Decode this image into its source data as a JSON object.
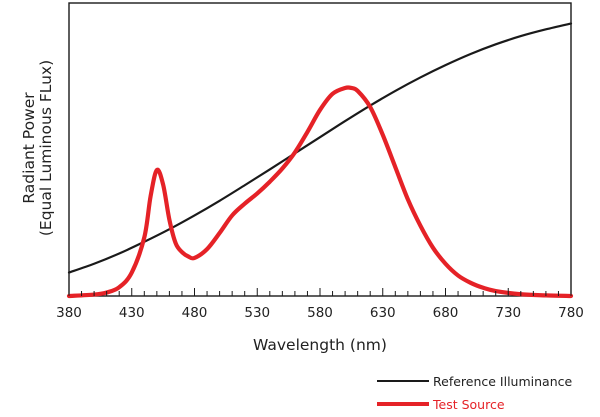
{
  "chart_data": {
    "type": "line",
    "xlabel": "Wavelength (nm)",
    "ylabel_lines": [
      "Radiant Power",
      "(Equal Luminous FLux)"
    ],
    "xlim": [
      380,
      780
    ],
    "ylim": [
      0,
      1
    ],
    "x_ticks": [
      380,
      430,
      480,
      530,
      580,
      630,
      680,
      730,
      780
    ],
    "minor_tick_step": 10,
    "grid": false,
    "legend_position": "bottom-right",
    "series": [
      {
        "name": "Reference Illuminance",
        "color": "#1a1a1a",
        "x": [
          380,
          400,
          420,
          440,
          460,
          480,
          500,
          520,
          540,
          560,
          580,
          600,
          620,
          640,
          660,
          680,
          700,
          720,
          740,
          760,
          780
        ],
        "y": [
          0.08,
          0.11,
          0.145,
          0.185,
          0.228,
          0.275,
          0.325,
          0.378,
          0.432,
          0.487,
          0.542,
          0.597,
          0.65,
          0.7,
          0.746,
          0.788,
          0.826,
          0.859,
          0.887,
          0.91,
          0.93
        ]
      },
      {
        "name": "Test Source",
        "color": "#e52227",
        "x": [
          380,
          400,
          410,
          420,
          430,
          440,
          445,
          450,
          455,
          460,
          465,
          470,
          475,
          480,
          490,
          500,
          510,
          520,
          530,
          540,
          550,
          560,
          570,
          580,
          590,
          600,
          605,
          610,
          620,
          630,
          640,
          650,
          660,
          670,
          680,
          690,
          700,
          710,
          720,
          740,
          760,
          780
        ],
        "y": [
          0.0,
          0.005,
          0.012,
          0.03,
          0.08,
          0.2,
          0.34,
          0.43,
          0.38,
          0.26,
          0.18,
          0.15,
          0.135,
          0.13,
          0.16,
          0.215,
          0.275,
          0.315,
          0.35,
          0.39,
          0.435,
          0.49,
          0.56,
          0.635,
          0.69,
          0.71,
          0.71,
          0.7,
          0.645,
          0.55,
          0.44,
          0.33,
          0.24,
          0.165,
          0.11,
          0.07,
          0.045,
          0.028,
          0.017,
          0.006,
          0.002,
          0.0
        ]
      }
    ]
  }
}
